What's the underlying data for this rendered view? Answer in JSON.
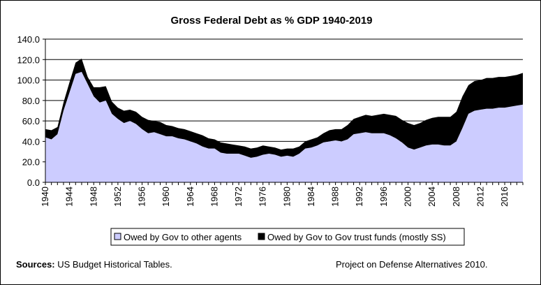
{
  "chart_data": {
    "type": "area",
    "stacked": true,
    "title": "Gross Federal Debt as % GDP 1940-2019",
    "xlabel": "",
    "ylabel": "",
    "ylim": [
      0,
      140
    ],
    "yticks": [
      "0.0",
      "20.0",
      "40.0",
      "60.0",
      "80.0",
      "100.0",
      "120.0",
      "140.0"
    ],
    "xticks": [
      "1940",
      "1944",
      "1948",
      "1952",
      "1956",
      "1960",
      "1964",
      "1968",
      "1972",
      "1976",
      "1980",
      "1984",
      "1988",
      "1992",
      "1996",
      "2000",
      "2004",
      "2008",
      "2012",
      "2016"
    ],
    "grid": "horizontal",
    "legend_position": "bottom",
    "x": [
      1940,
      1941,
      1942,
      1943,
      1944,
      1945,
      1946,
      1947,
      1948,
      1949,
      1950,
      1951,
      1952,
      1953,
      1954,
      1955,
      1956,
      1957,
      1958,
      1959,
      1960,
      1961,
      1962,
      1963,
      1964,
      1965,
      1966,
      1967,
      1968,
      1969,
      1970,
      1971,
      1972,
      1973,
      1974,
      1975,
      1976,
      1977,
      1978,
      1979,
      1980,
      1981,
      1982,
      1983,
      1984,
      1985,
      1986,
      1987,
      1988,
      1989,
      1990,
      1991,
      1992,
      1993,
      1994,
      1995,
      1996,
      1997,
      1998,
      1999,
      2000,
      2001,
      2002,
      2003,
      2004,
      2005,
      2006,
      2007,
      2008,
      2009,
      2010,
      2011,
      2012,
      2013,
      2014,
      2015,
      2016,
      2017,
      2018,
      2019
    ],
    "series": [
      {
        "name": "Owed by Gov to other agents",
        "color": "#ccccff",
        "values": [
          44,
          42,
          47,
          70,
          88,
          106,
          108,
          96,
          84,
          78,
          80,
          67,
          62,
          58,
          60,
          57,
          52,
          48,
          49,
          47,
          45,
          45,
          43,
          42,
          40,
          38,
          35,
          33,
          33,
          29,
          28,
          28,
          28,
          26,
          24,
          25,
          27,
          28,
          27,
          25,
          26,
          25,
          28,
          33,
          34,
          36,
          39,
          40,
          41,
          40,
          42,
          47,
          48,
          49,
          48,
          48,
          48,
          46,
          43,
          39,
          34,
          32,
          34,
          36,
          37,
          37,
          36,
          36,
          40,
          53,
          67,
          70,
          71,
          72,
          72,
          73,
          73,
          74,
          75,
          76
        ]
      },
      {
        "name": "Owed by Gov to Gov trust funds (mostly SS)",
        "color": "#000000",
        "values": [
          8,
          9,
          7,
          8,
          10,
          11,
          13,
          7,
          9,
          15,
          14,
          12,
          11,
          12,
          11,
          12,
          12,
          13,
          11,
          12,
          11,
          10,
          10,
          10,
          10,
          10,
          11,
          10,
          9,
          10,
          10,
          9,
          8,
          9,
          9,
          9,
          9,
          7,
          7,
          7,
          7,
          8,
          7,
          7,
          8,
          8,
          9,
          11,
          11,
          12,
          14,
          15,
          16,
          17,
          17,
          18,
          19,
          20,
          22,
          22,
          24,
          24,
          24,
          25,
          26,
          27,
          28,
          28,
          29,
          31,
          28,
          29,
          29,
          30,
          30,
          30,
          30,
          30,
          30,
          31
        ]
      }
    ]
  },
  "footer": {
    "sources_label": "Sources:",
    "sources_text": " US Budget Historical Tables.",
    "credit": "Project on Defense Alternatives 2010."
  }
}
